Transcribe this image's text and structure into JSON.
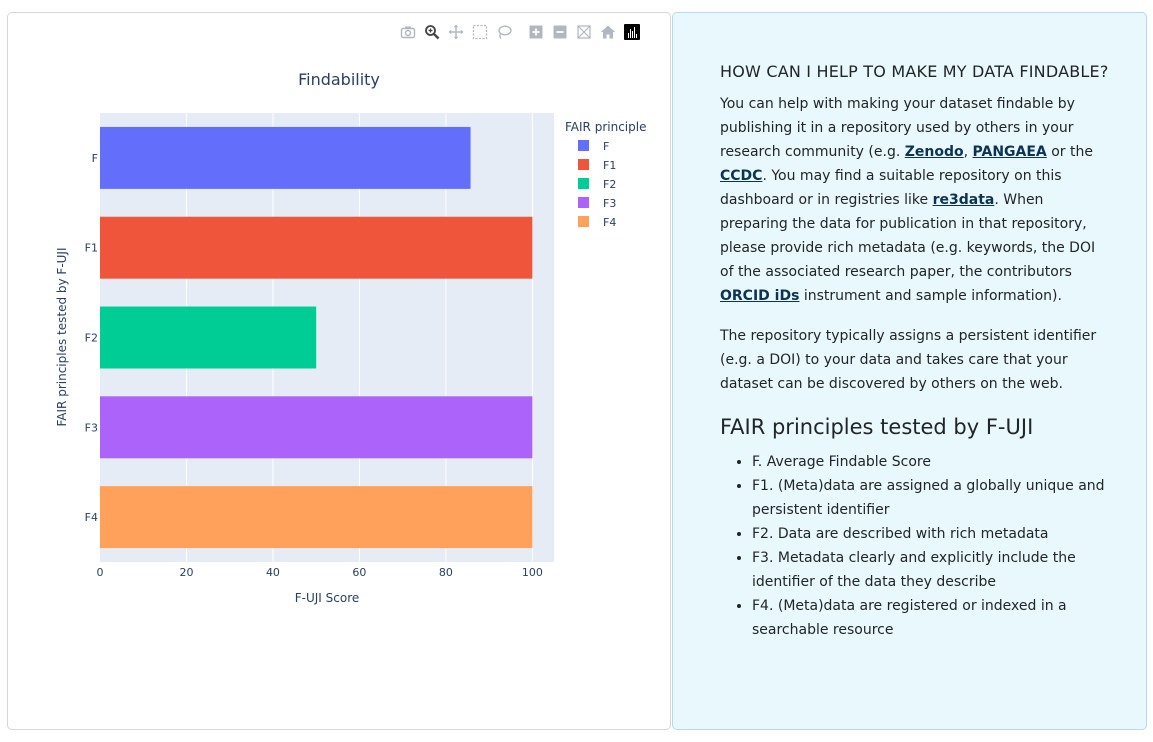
{
  "modebar": {
    "icons": [
      "camera-icon",
      "zoom-icon",
      "pan-icon",
      "box-select-icon",
      "lasso-icon",
      "zoom-in-icon",
      "zoom-out-icon",
      "autoscale-icon",
      "reset-axes-icon",
      "plotly-logo-icon"
    ]
  },
  "chart_data": {
    "type": "bar",
    "orientation": "horizontal",
    "title": "Findability",
    "xlabel": "F-UJI Score",
    "ylabel": "FAIR principles tested by F-UJI",
    "xlim": [
      0,
      105
    ],
    "xticks": [
      "0",
      "20",
      "40",
      "60",
      "80",
      "100"
    ],
    "categories": [
      "F",
      "F1",
      "F2",
      "F3",
      "F4"
    ],
    "series": [
      {
        "name": "F",
        "category": "F",
        "value": 85.7,
        "color": "#636efa"
      },
      {
        "name": "F1",
        "category": "F1",
        "value": 100,
        "color": "#ef553b"
      },
      {
        "name": "F2",
        "category": "F2",
        "value": 50,
        "color": "#00cc96"
      },
      {
        "name": "F3",
        "category": "F3",
        "value": 100,
        "color": "#ab63fa"
      },
      {
        "name": "F4",
        "category": "F4",
        "value": 100,
        "color": "#ffa15a"
      }
    ],
    "legend": {
      "title": "FAIR principle",
      "placement": "top-right"
    },
    "grid": true
  },
  "panel": {
    "heading": "HOW CAN I HELP TO MAKE MY DATA FINDABLE?",
    "p1": {
      "t1": "You can help with making your dataset findable by publishing it in a repository used by others in your research community (e.g. ",
      "link_zenodo": "Zenodo",
      "t2": ", ",
      "link_pangaea": "PANGAEA",
      "t3": " or the ",
      "link_ccdc": "CCDC",
      "t4": ". You may find a suitable repository on this dashboard or in registries like ",
      "link_re3data": "re3data",
      "t5": ". When preparing the data for publication in that repository, please provide rich metadata (e.g. keywords, the DOI of the associated research paper, the contributors ",
      "link_orcid": "ORCID iDs",
      "t6": " instrument and sample information)."
    },
    "p2": "The repository typically assigns a persistent identifier (e.g. a DOI) to your data and takes care that your dataset can be discovered by others on the web.",
    "principles_heading": "FAIR principles tested by F-UJI",
    "principles": [
      "F. Average Findable Score",
      "F1. (Meta)data are assigned a globally unique and persistent identifier",
      "F2. Data are described with rich metadata",
      "F3. Metadata clearly and explicitly include the identifier of the data they describe",
      "F4. (Meta)data are registered or indexed in a searchable resource"
    ]
  }
}
